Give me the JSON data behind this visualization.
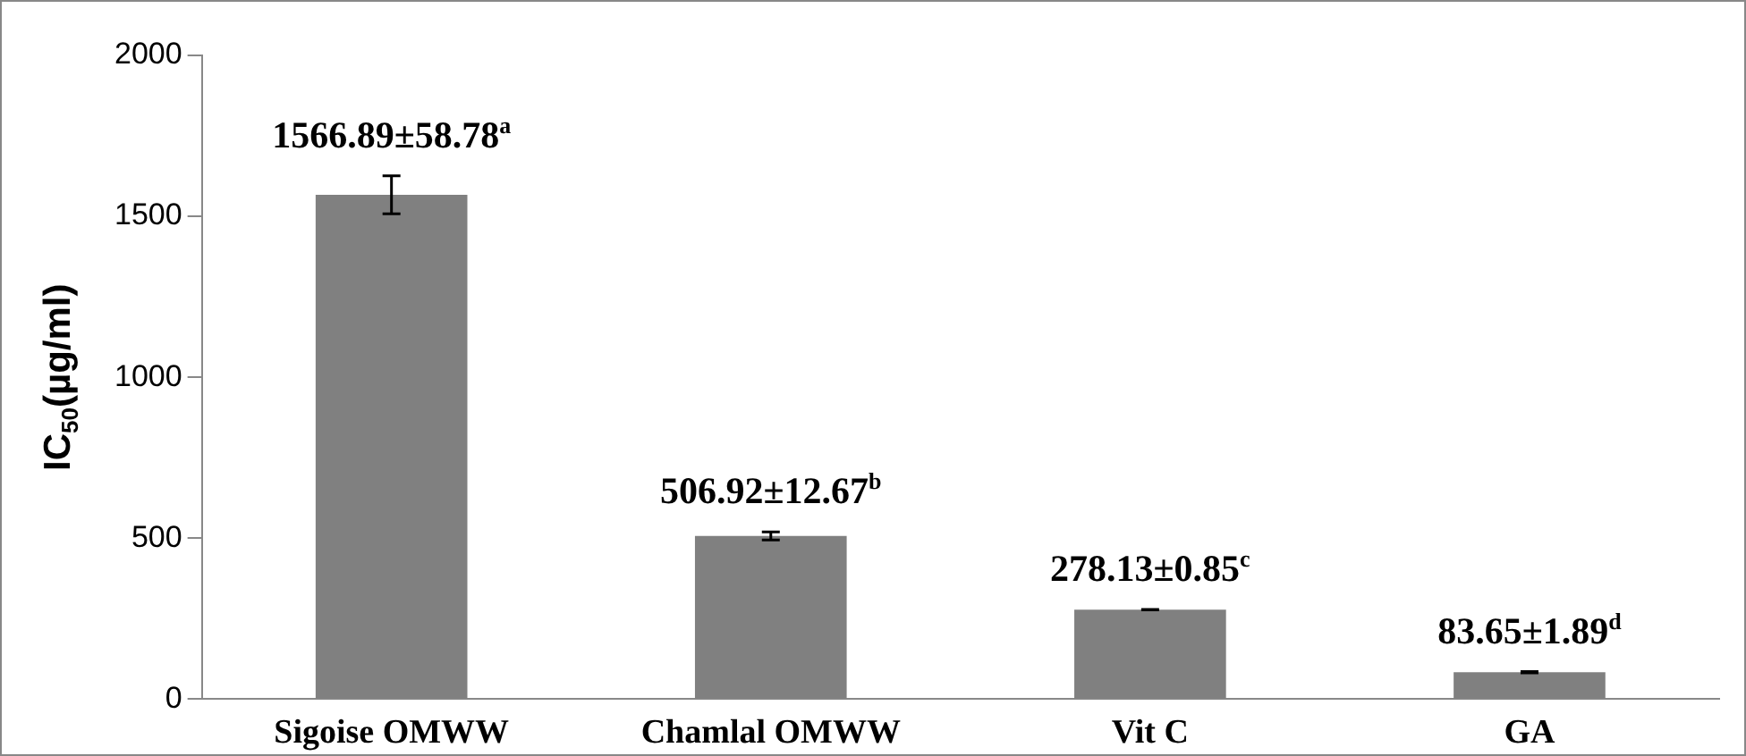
{
  "chart_data": {
    "type": "bar",
    "ylabel": "IC$_{50}$(µg/ml)",
    "categories": [
      "Sigoise OMWW",
      "Chamlal OMWW",
      "Vit C",
      "GA"
    ],
    "values": [
      1566.89,
      506.92,
      278.13,
      83.65
    ],
    "errors": [
      58.78,
      12.67,
      0.85,
      1.89
    ],
    "value_labels": [
      "1566.89±58.78$^{a}$",
      "506.92±12.67$^{b}$",
      "278.13±0.85$^{c}$",
      "83.65±1.89$^{d}$"
    ],
    "color": "#808080",
    "ylim": [
      0,
      2000
    ],
    "yticks": [
      0,
      500,
      1000,
      1500,
      2000
    ],
    "grid": false,
    "legend": false
  }
}
